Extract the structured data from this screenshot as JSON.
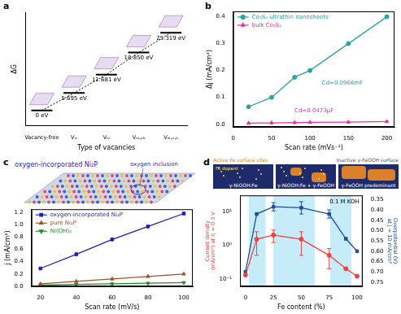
{
  "chart_data": [
    {
      "panel": "a",
      "type": "line",
      "categories": [
        "Vacancy-free",
        "Vₛᵢ",
        "Vₙᵢ",
        "Vₙᵢ,ₒₕ",
        "Vₙᵢ,ₒ,ₕ"
      ],
      "values": [
        0,
        5.695,
        11.681,
        18.85,
        25.319
      ],
      "value_labels": [
        "0 eV",
        "5.695 eV",
        "11.681 eV",
        "18.850 eV",
        "25.319 eV"
      ],
      "data_labels": true,
      "color": "#000000",
      "marker": "line",
      "line_style": "dotted",
      "xlabel": "Type of vacancies",
      "ylabel": "ΔG",
      "ylim": [
        -5,
        32
      ],
      "tick_labels": "x",
      "grid": false
    },
    {
      "panel": "b",
      "type": "line",
      "xlabel": "Scan rate (mVs⁻¹)",
      "ylabel": "Δj (mA/cm²)",
      "x": [
        20,
        50,
        80,
        100,
        150,
        200
      ],
      "series": [
        {
          "name": "Co₃S₄ ultrathin nanosheets",
          "color": "#2aa79b",
          "marker": "circle",
          "line_style": "solid",
          "values": [
            0.065,
            0.1,
            0.175,
            0.2,
            0.3,
            0.4
          ]
        },
        {
          "name": "bulk Co₃S₄",
          "color": "#e0359a",
          "marker": "triangle",
          "line_style": "solid",
          "values": [
            0.004,
            0.005,
            0.006,
            0.007,
            0.008,
            0.01
          ]
        }
      ],
      "xlim": [
        0,
        210
      ],
      "xticks": [
        0,
        50,
        100,
        150,
        200
      ],
      "ylim": [
        -0.01,
        0.42
      ],
      "yticks": [
        {
          "value": 0,
          "label": "0.0"
        },
        0.1,
        0.2,
        0.3,
        0.4
      ],
      "annotations": [
        "Cd=0.0966mF",
        "Cd=0.0473μF"
      ],
      "legend": "upper left",
      "grid": false
    },
    {
      "panel": "c",
      "type": "line",
      "xlabel": "Scan rate (mV/s)",
      "ylabel": "j (mA/cm²)",
      "x": [
        20,
        40,
        60,
        80,
        100
      ],
      "series": [
        {
          "name": "oxygen-incorporated Ni₂P",
          "color": "#1f1fb4",
          "marker": "square",
          "line_style": "solid",
          "values": [
            0.29,
            0.52,
            0.76,
            0.97,
            1.18
          ]
        },
        {
          "name": "pure Ni₂P",
          "color": "#a0522d",
          "marker": "triangle",
          "line_style": "solid",
          "values": [
            0.04,
            0.08,
            0.12,
            0.16,
            0.2
          ]
        },
        {
          "name": "Ni(OH)₂",
          "color": "#1e8c1e",
          "marker": "triangle-down",
          "line_style": "solid",
          "values": [
            0.02,
            0.03,
            0.04,
            0.05,
            0.06
          ]
        }
      ],
      "xlim": [
        15,
        105
      ],
      "xticks": [
        20,
        40,
        60,
        80,
        100
      ],
      "ylim": [
        0,
        1.25
      ],
      "yticks": [
        {
          "value": 0,
          "label": "0.0"
        },
        0.2,
        0.4,
        0.6,
        0.8,
        {
          "value": 1,
          "label": "1.0"
        },
        1.2
      ],
      "illustration_labels": [
        "oxygen-incorporated Ni₂P",
        "oxygen inclusion"
      ],
      "legend": "upper left",
      "grid": false
    },
    {
      "panel": "d",
      "type": "line",
      "xlabel": "Fe content (%)",
      "ylabel": "Current density (mA/cm²) at η = 0.3 V",
      "y2label": "Overpotential (V) at J = 10 mA/cm²",
      "x": [
        0,
        10,
        25,
        50,
        75,
        90,
        100
      ],
      "series": [
        {
          "name": "Current density",
          "color": "#f04040",
          "marker": "circle",
          "line_style": "solid",
          "values": [
            0.13,
            1.5,
            2,
            1.5,
            0.5,
            0.2,
            0.12
          ],
          "errors": [
            0,
            1,
            0.8,
            1,
            0.3,
            0,
            0
          ]
        },
        {
          "name": "Overpotential",
          "color": "#1f4e9e",
          "marker": "square",
          "line_style": "solid",
          "axis": "y2",
          "values": [
            0.7,
            0.42,
            0.385,
            0.39,
            0.42,
            0.54,
            0.6
          ],
          "errors": [
            0,
            0,
            0.02,
            0.03,
            0.02,
            0,
            0
          ]
        }
      ],
      "xlim": [
        -5,
        105
      ],
      "xticks": [
        0,
        25,
        50,
        75,
        100
      ],
      "log": "y",
      "ylim": [
        0.06,
        30
      ],
      "yticks": [
        {
          "value": 0.1,
          "label": "10⁻¹"
        },
        {
          "value": 1,
          "label": "10⁰"
        },
        {
          "value": 10,
          "label": "10¹"
        }
      ],
      "y2lim": [
        0.77,
        0.33
      ],
      "y2ticks": [
        0.35,
        {
          "value": 0.4,
          "label": "0.40"
        },
        0.45,
        {
          "value": 0.5,
          "label": "0.50"
        },
        0.55,
        {
          "value": 0.6,
          "label": "0.60"
        },
        0.65,
        {
          "value": 0.7,
          "label": "0.70"
        },
        0.75
      ],
      "shaded_ranges": [
        [
          3,
          18
        ],
        [
          25,
          62
        ],
        [
          76,
          95
        ]
      ],
      "annotations": [
        "0.1 M KOH"
      ],
      "illustration": {
        "top_labels": [
          "Active Fe surface sites",
          "Inactive γ-FeOOH surface"
        ],
        "dopant_label": "Fe dopant",
        "phases": [
          "γ-NiOOH:Fe",
          "γ-NiOOH:Fe + γ-FeOOH",
          "γ-FeOOH predominant"
        ]
      },
      "grid": false
    }
  ]
}
